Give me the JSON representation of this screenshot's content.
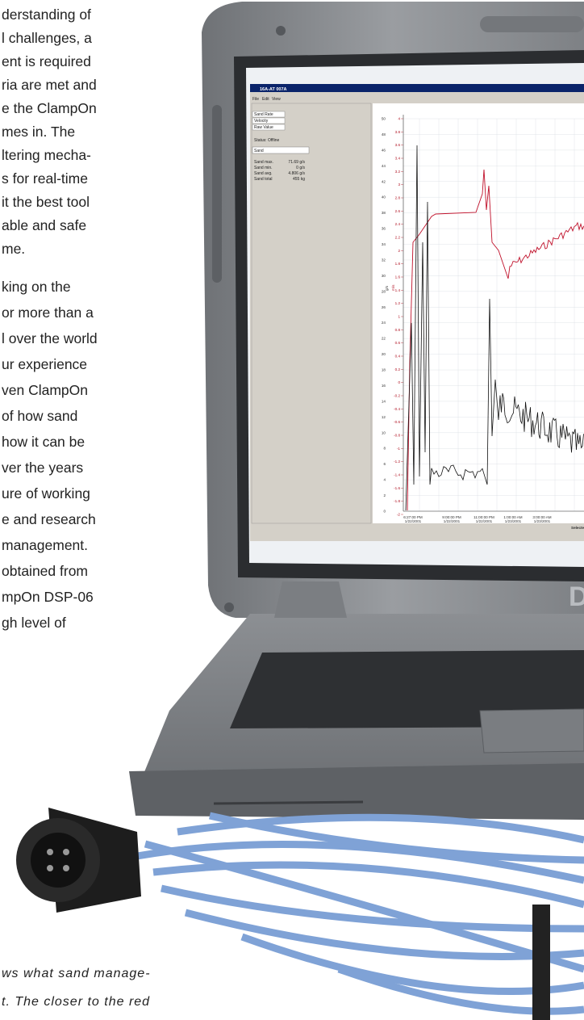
{
  "left_text": {
    "paragraphs": [
      [
        "derstanding of",
        "l challenges, a",
        "ent is required",
        "ria are met and",
        "e the ClampOn",
        "mes in. The",
        "ltering mecha-",
        "s for real-time",
        "it the best tool",
        "able and safe",
        "me."
      ],
      [
        "king on the",
        "or more than a",
        "l over the world",
        "ur experience",
        "ven ClampOn",
        "of how sand",
        "how it can be",
        "ver the years",
        "ure of working",
        "e and research",
        "management.",
        "obtained from",
        "mpOn DSP-06",
        "gh level of"
      ]
    ]
  },
  "caption": {
    "lines": [
      "ws what sand manage-",
      "t. The closer to the red"
    ]
  },
  "screen": {
    "window_title": "16A-AT 007A",
    "menu": [
      "File",
      "Edit",
      "View"
    ],
    "legend": [
      "Sand Rate",
      "Velocity",
      "Raw Value"
    ],
    "status": "Status: Offline",
    "dropdown": "Sand",
    "stats": [
      [
        "Sand max.",
        "71.69 g/s"
      ],
      [
        "Sand min.",
        "0 g/s"
      ],
      [
        "Sand avg.",
        "4.806 g/s"
      ],
      [
        "Sand total",
        "455 kg"
      ]
    ],
    "chart": {
      "y_label": "g/s",
      "y2_label": "m/s",
      "yticks": [
        0,
        2,
        4,
        6,
        8,
        10,
        12,
        14,
        16,
        18,
        20,
        22,
        24,
        26,
        28,
        30,
        32,
        34,
        36,
        38,
        40,
        42,
        44,
        46,
        48,
        50
      ],
      "y2ticks": [
        -2,
        -1.8,
        -1.6,
        -1.4,
        -1.2,
        -1,
        -0.8,
        -0.6,
        -0.4,
        -0.2,
        0,
        0.2,
        0.4,
        0.6,
        0.8,
        1,
        1.2,
        1.4,
        1.6,
        1.8,
        2,
        2.2,
        2.4,
        2.6,
        2.8,
        3,
        3.2,
        3.4,
        3.6,
        3.8,
        4
      ],
      "x_labels": [
        [
          "6:27:00 PM",
          "1/22/2001"
        ],
        [
          "9:00:00 PM",
          "1/22/2001"
        ],
        [
          "11:00:00 PM",
          "1/22/2001"
        ],
        [
          "1:00:00 AM",
          "1/23/2001"
        ],
        [
          "3:00:00 AM",
          "1/23/2001"
        ]
      ],
      "selected": "Selected:"
    }
  },
  "logo": "D"
}
